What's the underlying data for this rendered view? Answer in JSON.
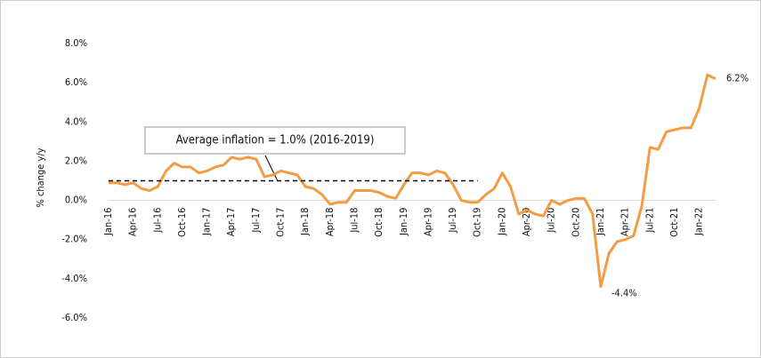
{
  "chart_data": {
    "type": "line",
    "y_label": "% change y/y",
    "annotation": "Average inflation = 1.0% (2016-2019)",
    "categories": [
      "Jan-16",
      null,
      null,
      "Apr-16",
      null,
      null,
      "Jul-16",
      null,
      null,
      "Oct-16",
      null,
      null,
      "Jan-17",
      null,
      null,
      "Apr-17",
      null,
      null,
      "Jul-17",
      null,
      null,
      "Oct-17",
      null,
      null,
      "Jan-18",
      null,
      null,
      "Apr-18",
      null,
      null,
      "Jul-18",
      null,
      null,
      "Oct-18",
      null,
      null,
      "Jan-19",
      null,
      null,
      "Apr-19",
      null,
      null,
      "Jul-19",
      null,
      null,
      "Oct-19",
      null,
      null,
      "Jan-20",
      null,
      null,
      "Apr-20",
      null,
      null,
      "Jul-20",
      null,
      null,
      "Oct-20",
      null,
      null,
      "Jan-21",
      null,
      null,
      "Apr-21",
      null,
      null,
      "Jul-21",
      null,
      null,
      "Oct-21",
      null,
      null,
      "Jan-22",
      null,
      null
    ],
    "series": [
      {
        "color": "#f39b45",
        "values": [
          0.9,
          0.9,
          0.8,
          0.9,
          0.6,
          0.5,
          0.7,
          1.5,
          1.9,
          1.7,
          1.7,
          1.4,
          1.5,
          1.7,
          1.8,
          2.2,
          2.1,
          2.2,
          2.1,
          1.2,
          1.3,
          1.5,
          1.4,
          1.3,
          0.7,
          0.6,
          0.3,
          -0.2,
          -0.1,
          -0.1,
          0.5,
          0.5,
          0.5,
          0.4,
          0.2,
          0.1,
          0.8,
          1.4,
          1.4,
          1.3,
          1.5,
          1.4,
          0.8,
          0.0,
          -0.1,
          -0.1,
          0.3,
          0.6,
          1.4,
          0.7,
          -0.7,
          -0.5,
          -0.7,
          -0.8,
          0.0,
          -0.2,
          0.0,
          0.1,
          0.1,
          -0.7,
          -4.4,
          -2.7,
          -2.1,
          -2.0,
          -1.8,
          -0.3,
          2.7,
          2.6,
          3.5,
          3.6,
          3.7,
          3.7,
          4.7,
          6.4,
          6.2
        ],
        "value_labels": [
          null,
          null,
          null,
          null,
          null,
          null,
          null,
          null,
          null,
          null,
          null,
          null,
          null,
          null,
          null,
          null,
          null,
          null,
          null,
          null,
          null,
          null,
          null,
          null,
          null,
          null,
          null,
          null,
          null,
          null,
          null,
          null,
          null,
          null,
          null,
          null,
          null,
          null,
          null,
          null,
          null,
          null,
          null,
          null,
          null,
          null,
          null,
          null,
          null,
          null,
          null,
          null,
          null,
          null,
          null,
          null,
          null,
          null,
          null,
          null,
          "-4.4%",
          null,
          null,
          null,
          null,
          null,
          null,
          null,
          null,
          null,
          null,
          null,
          null,
          null,
          "6.2%"
        ]
      },
      {
        "color": "#000000",
        "dashed": true,
        "values": [
          1.0,
          1.0,
          1.0,
          1.0,
          1.0,
          1.0,
          1.0,
          1.0,
          1.0,
          1.0,
          1.0,
          1.0,
          1.0,
          1.0,
          1.0,
          1.0,
          1.0,
          1.0,
          1.0,
          1.0,
          1.0,
          1.0,
          1.0,
          1.0,
          1.0,
          1.0,
          1.0,
          1.0,
          1.0,
          1.0,
          1.0,
          1.0,
          1.0,
          1.0,
          1.0,
          1.0,
          1.0,
          1.0,
          1.0,
          1.0,
          1.0,
          1.0,
          1.0,
          1.0,
          1.0,
          1.0,
          null,
          null,
          null,
          null,
          null,
          null,
          null,
          null,
          null,
          null,
          null,
          null,
          null,
          null,
          null,
          null,
          null,
          null,
          null,
          null,
          null,
          null,
          null,
          null,
          null,
          null,
          null,
          null,
          null
        ]
      }
    ],
    "ylim": [
      -7,
      8.5
    ],
    "yticks": [
      {
        "value": 8,
        "label": "8.0%"
      },
      {
        "value": 6,
        "label": "6.0%"
      },
      {
        "value": 4,
        "label": "4.0%"
      },
      {
        "value": 2,
        "label": "2.0%"
      },
      {
        "value": 0,
        "label": "0.0%"
      },
      {
        "value": -2,
        "label": "-2.0%"
      },
      {
        "value": -4,
        "label": "-4.0%"
      },
      {
        "value": -6,
        "label": "-6.0%"
      }
    ]
  }
}
